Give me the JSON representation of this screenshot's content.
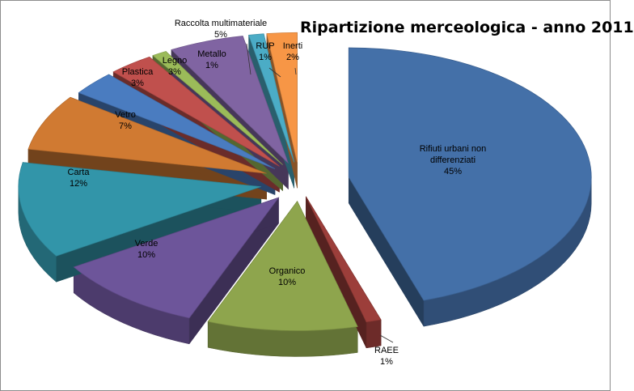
{
  "chart_data": {
    "type": "pie",
    "variant": "3d-exploded",
    "title": "Ripartizione merceologica - anno 2011",
    "slices": [
      {
        "label": "Rifiuti urbani non differenziati",
        "value": 45,
        "value_label": "45%",
        "color": "#4470A8"
      },
      {
        "label": "RAEE",
        "value": 1,
        "value_label": "1%",
        "color": "#9C3E3A"
      },
      {
        "label": "Organico",
        "value": 10,
        "value_label": "10%",
        "color": "#8EA54D"
      },
      {
        "label": "Verde",
        "value": 10,
        "value_label": "10%",
        "color": "#6D559A"
      },
      {
        "label": "Carta",
        "value": 12,
        "value_label": "12%",
        "color": "#3295A9"
      },
      {
        "label": "Vetro",
        "value": 7,
        "value_label": "7%",
        "color": "#D07A32"
      },
      {
        "label": "Plastica",
        "value": 3,
        "value_label": "3%",
        "color": "#4A7CC0"
      },
      {
        "label": "Legno",
        "value": 3,
        "value_label": "3%",
        "color": "#C0504D"
      },
      {
        "label": "Metallo",
        "value": 1,
        "value_label": "1%",
        "color": "#9BBB59"
      },
      {
        "label": "Raccolta multimateriale",
        "value": 5,
        "value_label": "5%",
        "color": "#8064A2"
      },
      {
        "label": "RUP",
        "value": 1,
        "value_label": "1%",
        "color": "#4BACC6"
      },
      {
        "label": "Inerti",
        "value": 2,
        "value_label": "2%",
        "color": "#F79646"
      }
    ]
  }
}
